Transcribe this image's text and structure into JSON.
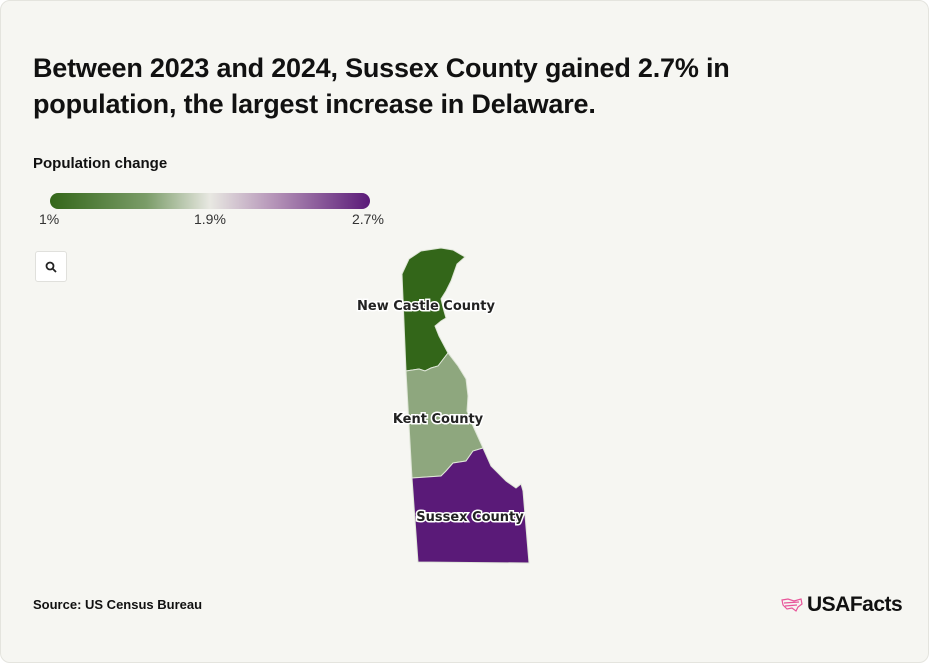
{
  "chart_data": {
    "type": "choropleth",
    "title": "Between 2023 and 2024, Sussex County gained 2.7% in population, the largest increase in Delaware.",
    "legend": {
      "title": "Population change",
      "ticks": [
        "1%",
        "1.9%",
        "2.7%"
      ],
      "min": 1.0,
      "mid": 1.9,
      "max": 2.7,
      "colors": {
        "low": "#336619",
        "mid": "#e8e8e2",
        "high": "#5a1a78"
      }
    },
    "regions": [
      {
        "name": "New Castle County",
        "value": 1.0
      },
      {
        "name": "Kent County",
        "value": 1.45
      },
      {
        "name": "Sussex County",
        "value": 2.7
      }
    ],
    "source": "Source: US Census Bureau"
  },
  "brand": {
    "name": "USAFacts",
    "accent": "#e8559a"
  }
}
